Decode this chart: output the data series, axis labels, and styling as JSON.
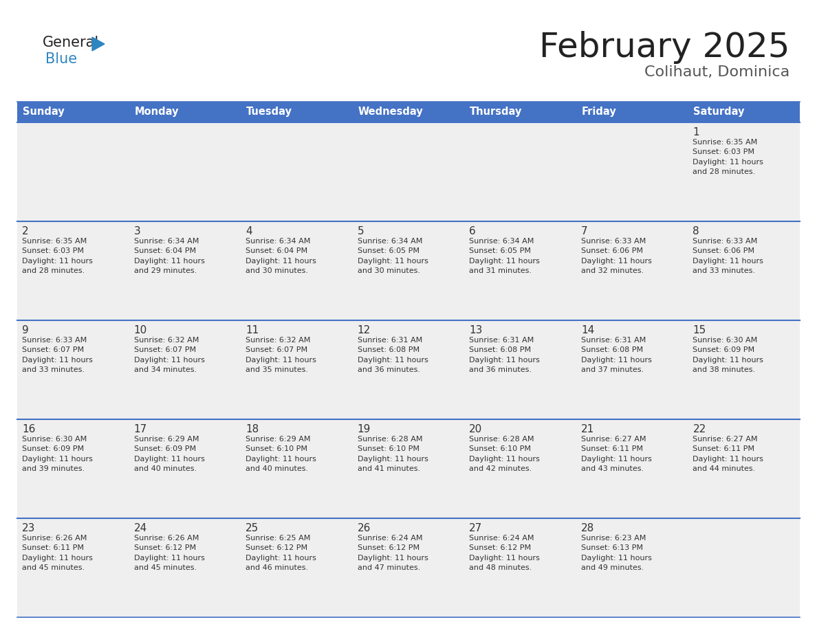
{
  "title": "February 2025",
  "subtitle": "Colihaut, Dominica",
  "header_bg": "#4472C4",
  "header_text_color": "#FFFFFF",
  "days_of_week": [
    "Sunday",
    "Monday",
    "Tuesday",
    "Wednesday",
    "Thursday",
    "Friday",
    "Saturday"
  ],
  "cell_bg_light": "#EFEFEF",
  "day_num_color": "#333333",
  "info_text_color": "#333333",
  "border_color": "#4472C4",
  "title_color": "#222222",
  "subtitle_color": "#555555",
  "logo_general_color": "#222222",
  "logo_blue_color": "#2E86C1",
  "weeks": [
    [
      {
        "day": null,
        "info": null
      },
      {
        "day": null,
        "info": null
      },
      {
        "day": null,
        "info": null
      },
      {
        "day": null,
        "info": null
      },
      {
        "day": null,
        "info": null
      },
      {
        "day": null,
        "info": null
      },
      {
        "day": 1,
        "info": "Sunrise: 6:35 AM\nSunset: 6:03 PM\nDaylight: 11 hours\nand 28 minutes."
      }
    ],
    [
      {
        "day": 2,
        "info": "Sunrise: 6:35 AM\nSunset: 6:03 PM\nDaylight: 11 hours\nand 28 minutes."
      },
      {
        "day": 3,
        "info": "Sunrise: 6:34 AM\nSunset: 6:04 PM\nDaylight: 11 hours\nand 29 minutes."
      },
      {
        "day": 4,
        "info": "Sunrise: 6:34 AM\nSunset: 6:04 PM\nDaylight: 11 hours\nand 30 minutes."
      },
      {
        "day": 5,
        "info": "Sunrise: 6:34 AM\nSunset: 6:05 PM\nDaylight: 11 hours\nand 30 minutes."
      },
      {
        "day": 6,
        "info": "Sunrise: 6:34 AM\nSunset: 6:05 PM\nDaylight: 11 hours\nand 31 minutes."
      },
      {
        "day": 7,
        "info": "Sunrise: 6:33 AM\nSunset: 6:06 PM\nDaylight: 11 hours\nand 32 minutes."
      },
      {
        "day": 8,
        "info": "Sunrise: 6:33 AM\nSunset: 6:06 PM\nDaylight: 11 hours\nand 33 minutes."
      }
    ],
    [
      {
        "day": 9,
        "info": "Sunrise: 6:33 AM\nSunset: 6:07 PM\nDaylight: 11 hours\nand 33 minutes."
      },
      {
        "day": 10,
        "info": "Sunrise: 6:32 AM\nSunset: 6:07 PM\nDaylight: 11 hours\nand 34 minutes."
      },
      {
        "day": 11,
        "info": "Sunrise: 6:32 AM\nSunset: 6:07 PM\nDaylight: 11 hours\nand 35 minutes."
      },
      {
        "day": 12,
        "info": "Sunrise: 6:31 AM\nSunset: 6:08 PM\nDaylight: 11 hours\nand 36 minutes."
      },
      {
        "day": 13,
        "info": "Sunrise: 6:31 AM\nSunset: 6:08 PM\nDaylight: 11 hours\nand 36 minutes."
      },
      {
        "day": 14,
        "info": "Sunrise: 6:31 AM\nSunset: 6:08 PM\nDaylight: 11 hours\nand 37 minutes."
      },
      {
        "day": 15,
        "info": "Sunrise: 6:30 AM\nSunset: 6:09 PM\nDaylight: 11 hours\nand 38 minutes."
      }
    ],
    [
      {
        "day": 16,
        "info": "Sunrise: 6:30 AM\nSunset: 6:09 PM\nDaylight: 11 hours\nand 39 minutes."
      },
      {
        "day": 17,
        "info": "Sunrise: 6:29 AM\nSunset: 6:09 PM\nDaylight: 11 hours\nand 40 minutes."
      },
      {
        "day": 18,
        "info": "Sunrise: 6:29 AM\nSunset: 6:10 PM\nDaylight: 11 hours\nand 40 minutes."
      },
      {
        "day": 19,
        "info": "Sunrise: 6:28 AM\nSunset: 6:10 PM\nDaylight: 11 hours\nand 41 minutes."
      },
      {
        "day": 20,
        "info": "Sunrise: 6:28 AM\nSunset: 6:10 PM\nDaylight: 11 hours\nand 42 minutes."
      },
      {
        "day": 21,
        "info": "Sunrise: 6:27 AM\nSunset: 6:11 PM\nDaylight: 11 hours\nand 43 minutes."
      },
      {
        "day": 22,
        "info": "Sunrise: 6:27 AM\nSunset: 6:11 PM\nDaylight: 11 hours\nand 44 minutes."
      }
    ],
    [
      {
        "day": 23,
        "info": "Sunrise: 6:26 AM\nSunset: 6:11 PM\nDaylight: 11 hours\nand 45 minutes."
      },
      {
        "day": 24,
        "info": "Sunrise: 6:26 AM\nSunset: 6:12 PM\nDaylight: 11 hours\nand 45 minutes."
      },
      {
        "day": 25,
        "info": "Sunrise: 6:25 AM\nSunset: 6:12 PM\nDaylight: 11 hours\nand 46 minutes."
      },
      {
        "day": 26,
        "info": "Sunrise: 6:24 AM\nSunset: 6:12 PM\nDaylight: 11 hours\nand 47 minutes."
      },
      {
        "day": 27,
        "info": "Sunrise: 6:24 AM\nSunset: 6:12 PM\nDaylight: 11 hours\nand 48 minutes."
      },
      {
        "day": 28,
        "info": "Sunrise: 6:23 AM\nSunset: 6:13 PM\nDaylight: 11 hours\nand 49 minutes."
      },
      {
        "day": null,
        "info": null
      }
    ]
  ]
}
